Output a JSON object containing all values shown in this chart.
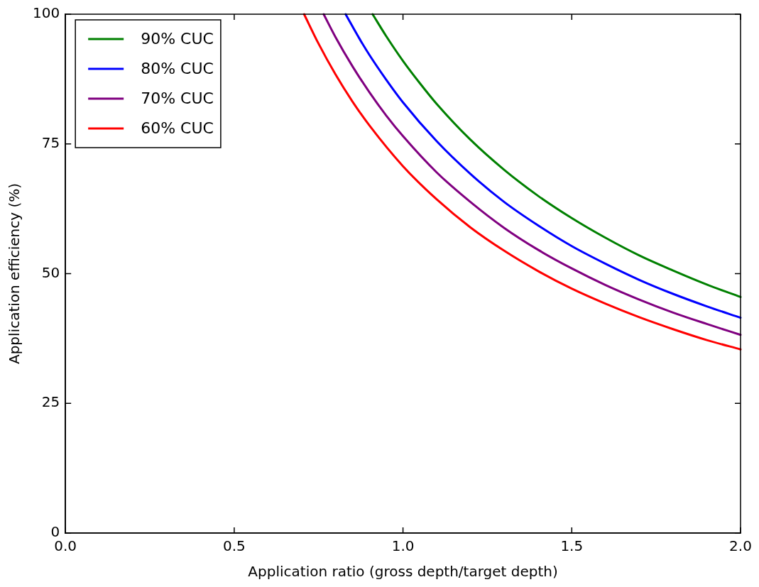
{
  "chart_data": {
    "type": "line",
    "xlabel": "Application ratio (gross depth/target depth)",
    "ylabel": "Application efficiency (%)",
    "xlim": [
      0,
      2
    ],
    "ylim": [
      0,
      100
    ],
    "xticks": [
      {
        "value": 0,
        "label": "0.0"
      },
      {
        "value": 0.5,
        "label": "0.5"
      },
      {
        "value": 1,
        "label": "1.0"
      },
      {
        "value": 1.5,
        "label": "1.5"
      },
      {
        "value": 2,
        "label": "2.0"
      }
    ],
    "yticks": [
      0,
      25,
      50,
      75,
      100
    ],
    "grid": false,
    "legend": "top left",
    "marker": "none",
    "line_style": "solid",
    "series": [
      {
        "name": "90% CUC",
        "color": "#008000",
        "x": [
          0.91,
          0.95,
          1.0,
          1.05,
          1.1,
          1.2,
          1.3,
          1.4,
          1.5,
          1.6,
          1.7,
          1.8,
          1.9,
          2.0
        ],
        "values": [
          100,
          95.8,
          91,
          86.7,
          82.7,
          75.8,
          70,
          65,
          60.7,
          56.9,
          53.5,
          50.6,
          47.9,
          45.5
        ]
      },
      {
        "name": "80% CUC",
        "color": "#0000ff",
        "x": [
          0.83,
          0.87,
          0.9,
          0.95,
          1.0,
          1.1,
          1.2,
          1.3,
          1.4,
          1.5,
          1.6,
          1.7,
          1.8,
          1.9,
          2.0
        ],
        "values": [
          100,
          95.4,
          92.2,
          87.4,
          83,
          75.5,
          69.2,
          63.8,
          59.3,
          55.3,
          51.9,
          48.8,
          46.1,
          43.7,
          41.5
        ]
      },
      {
        "name": "70% CUC",
        "color": "#800080",
        "x": [
          0.765,
          0.8,
          0.85,
          0.9,
          0.95,
          1.0,
          1.1,
          1.2,
          1.3,
          1.4,
          1.5,
          1.6,
          1.7,
          1.8,
          1.9,
          2.0
        ],
        "values": [
          100,
          95.6,
          90,
          85,
          80.5,
          76.5,
          69.5,
          63.8,
          58.8,
          54.6,
          51,
          47.8,
          45,
          42.5,
          40.3,
          38.2
        ]
      },
      {
        "name": "60% CUC",
        "color": "#ff0000",
        "x": [
          0.707,
          0.75,
          0.8,
          0.85,
          0.9,
          1.0,
          1.1,
          1.2,
          1.3,
          1.4,
          1.5,
          1.6,
          1.7,
          1.8,
          1.9,
          2.0
        ],
        "values": [
          100,
          94.3,
          88.4,
          83.2,
          78.6,
          70.7,
          64.3,
          58.9,
          54.4,
          50.5,
          47.1,
          44.2,
          41.6,
          39.3,
          37.2,
          35.4
        ]
      }
    ]
  }
}
